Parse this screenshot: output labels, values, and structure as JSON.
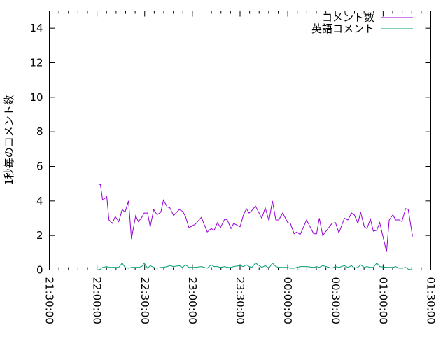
{
  "chart_data": {
    "type": "line",
    "title": "",
    "xlabel": "",
    "ylabel": "1秒毎のコメント数",
    "xlim": [
      "21:30:00",
      "01:30:00"
    ],
    "ylim": [
      0,
      15
    ],
    "grid": false,
    "legend_position": "top-right",
    "xticks": [
      "21:30:00",
      "22:00:00",
      "22:30:00",
      "23:00:00",
      "23:30:00",
      "00:00:00",
      "00:30:00",
      "01:00:00",
      "01:30:00"
    ],
    "yticks": [
      0,
      2,
      4,
      6,
      8,
      10,
      12,
      14
    ],
    "x": [
      "22:00:00",
      "22:02:10",
      "22:03:30",
      "22:06:10",
      "22:07:30",
      "22:09:40",
      "22:11:30",
      "22:13:40",
      "22:15:50",
      "22:17:40",
      "22:19:50",
      "22:21:40",
      "22:24:20",
      "22:26:00",
      "22:28:10",
      "22:29:40",
      "22:31:50",
      "22:33:30",
      "22:35:40",
      "22:37:50",
      "22:40:10",
      "22:41:50",
      "22:44:10",
      "22:45:50",
      "22:48:10",
      "22:51:40",
      "22:53:50",
      "22:55:40",
      "22:57:50",
      "23:01:50",
      "23:05:40",
      "23:09:20",
      "23:11:50",
      "23:13:40",
      "23:15:50",
      "23:17:40",
      "23:20:20",
      "23:22:00",
      "23:24:20",
      "23:26:00",
      "23:30:00",
      "23:32:10",
      "23:34:00",
      "23:35:40",
      "23:37:30",
      "23:39:40",
      "23:43:40",
      "23:45:50",
      "23:48:10",
      "23:50:20",
      "23:52:30",
      "23:54:20",
      "23:56:50",
      "00:00:00",
      "00:01:40",
      "00:04:00",
      "00:05:40",
      "00:07:50",
      "00:11:50",
      "00:16:20",
      "00:18:10",
      "00:19:50",
      "00:22:00",
      "00:27:50",
      "00:30:00",
      "00:32:10",
      "00:35:40",
      "00:37:50",
      "00:40:10",
      "00:41:50",
      "00:44:10",
      "00:45:50",
      "00:48:10",
      "00:49:50",
      "00:52:00",
      "00:53:50",
      "00:56:00",
      "00:57:50",
      "01:02:10",
      "01:03:50",
      "01:06:10",
      "01:07:50",
      "01:10:10",
      "01:11:50",
      "01:14:10",
      "01:15:50",
      "01:18:30"
    ],
    "series": [
      {
        "name": "コメント数",
        "color": "#9400d3",
        "values": [
          5.0,
          4.95,
          4.05,
          4.25,
          2.9,
          2.7,
          3.1,
          2.8,
          3.5,
          3.35,
          4.0,
          1.8,
          3.15,
          2.8,
          3.05,
          3.3,
          3.3,
          2.5,
          3.5,
          3.2,
          3.35,
          4.05,
          3.65,
          3.6,
          3.15,
          3.5,
          3.4,
          3.1,
          2.45,
          2.65,
          3.05,
          2.2,
          2.4,
          2.3,
          2.75,
          2.45,
          2.95,
          2.9,
          2.4,
          2.7,
          2.5,
          3.2,
          3.55,
          3.3,
          3.45,
          3.7,
          3.0,
          3.6,
          2.85,
          4.0,
          2.9,
          2.9,
          3.3,
          2.75,
          2.7,
          2.1,
          2.2,
          2.05,
          2.9,
          2.1,
          2.1,
          3.0,
          2.0,
          2.7,
          2.75,
          2.15,
          3.0,
          2.9,
          3.3,
          3.2,
          2.7,
          3.35,
          2.5,
          2.4,
          2.95,
          2.25,
          2.3,
          2.75,
          1.05,
          2.9,
          3.2,
          2.9,
          2.9,
          2.8,
          3.55,
          3.5,
          1.95
        ]
      },
      {
        "name": "英語コメント",
        "color": "#009e73",
        "values": [
          0,
          0.05,
          0.15,
          0.2,
          0.15,
          0.15,
          0.15,
          0.15,
          0.4,
          0.15,
          0.1,
          0.15,
          0.15,
          0.15,
          0.2,
          0.4,
          0.1,
          0.25,
          0.15,
          0.1,
          0.15,
          0.15,
          0.2,
          0.25,
          0.2,
          0.25,
          0.15,
          0.3,
          0.15,
          0.15,
          0.2,
          0.1,
          0.3,
          0.2,
          0.2,
          0.15,
          0.2,
          0.15,
          0.15,
          0.2,
          0.25,
          0.2,
          0.3,
          0.2,
          0.15,
          0.4,
          0.15,
          0.25,
          0.1,
          0.4,
          0.2,
          0.15,
          0.15,
          0.15,
          0.1,
          0.1,
          0.15,
          0.2,
          0.2,
          0.15,
          0.2,
          0.15,
          0.25,
          0.1,
          0.2,
          0.15,
          0.25,
          0.15,
          0.25,
          0.1,
          0.15,
          0.3,
          0.15,
          0.2,
          0.15,
          0.15,
          0.4,
          0.2,
          0.15,
          0.15,
          0.15,
          0.2,
          0.1,
          0.1,
          0.15,
          0.05,
          0.0
        ]
      }
    ]
  }
}
